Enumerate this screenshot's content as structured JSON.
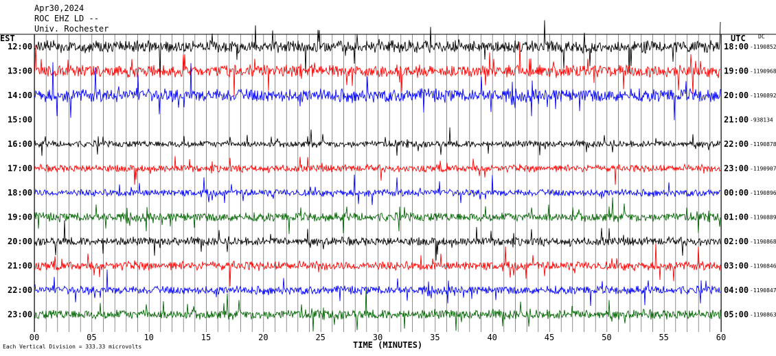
{
  "header": {
    "date": "Apr30,2024",
    "station": "ROC EHZ LD --",
    "location": "Univ. Rochester"
  },
  "chart_data": {
    "type": "line",
    "title": "Apr30,2024",
    "xlabel": "TIME (MINUTES)",
    "left_axis_label": "EST",
    "right_axis_label": "UTC",
    "dc_label": "DC",
    "x_ticks": [
      "00",
      "05",
      "10",
      "15",
      "20",
      "25",
      "30",
      "35",
      "40",
      "45",
      "50",
      "55",
      "60"
    ],
    "xlim": [
      0,
      60
    ],
    "scale_note": "Each Vertical Division = 333.33 microvolts",
    "trace_colors": [
      "#000000",
      "#ff0000",
      "#0000ff",
      "#006400"
    ],
    "rows": [
      {
        "est": "12:00",
        "utc": "18:00",
        "dc": "-1190852",
        "color": "#000000",
        "amp": 1.0
      },
      {
        "est": "13:00",
        "utc": "19:00",
        "dc": "-1190968",
        "color": "#ff0000",
        "amp": 1.0
      },
      {
        "est": "14:00",
        "utc": "20:00",
        "dc": "-1190892",
        "color": "#0000ff",
        "amp": 1.1
      },
      {
        "est": "15:00",
        "utc": "21:00",
        "dc": "-938134",
        "color": "#006400",
        "amp": 0.0
      },
      {
        "est": "16:00",
        "utc": "22:00",
        "dc": "-1190878",
        "color": "#000000",
        "amp": 0.55
      },
      {
        "est": "17:00",
        "utc": "23:00",
        "dc": "-1190907",
        "color": "#ff0000",
        "amp": 0.6
      },
      {
        "est": "18:00",
        "utc": "00:00",
        "dc": "-1190896",
        "color": "#0000ff",
        "amp": 0.6
      },
      {
        "est": "19:00",
        "utc": "01:00",
        "dc": "-1190889",
        "color": "#006400",
        "amp": 0.75
      },
      {
        "est": "20:00",
        "utc": "02:00",
        "dc": "-1190868",
        "color": "#000000",
        "amp": 0.7
      },
      {
        "est": "21:00",
        "utc": "03:00",
        "dc": "-1190846",
        "color": "#ff0000",
        "amp": 0.75
      },
      {
        "est": "22:00",
        "utc": "04:00",
        "dc": "-1190847",
        "color": "#0000ff",
        "amp": 0.7
      },
      {
        "est": "23:00",
        "utc": "05:00",
        "dc": "-1190863",
        "color": "#006400",
        "amp": 0.8
      }
    ]
  }
}
